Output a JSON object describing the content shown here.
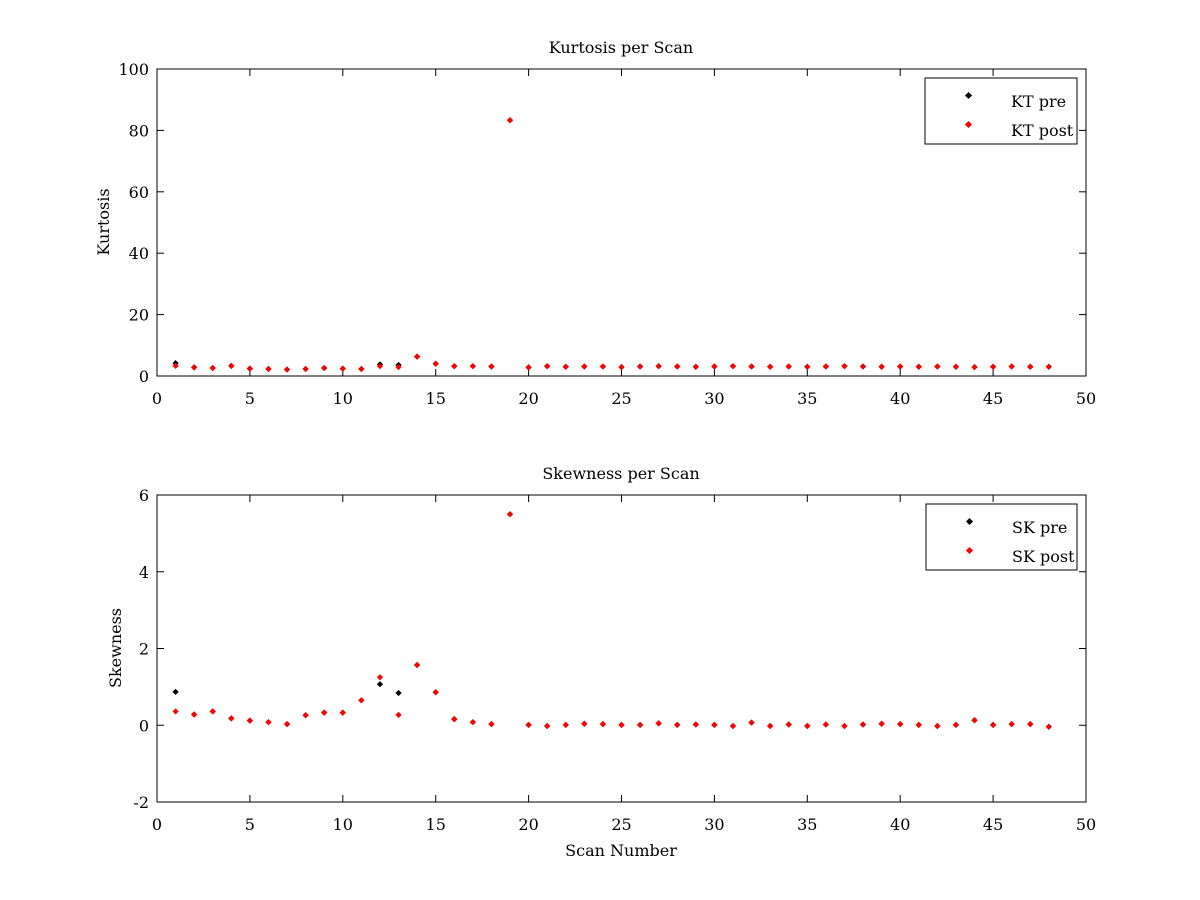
{
  "chart_data": [
    {
      "type": "scatter",
      "title": "Kurtosis per Scan",
      "xlabel": "",
      "ylabel": "Kurtosis",
      "xlim": [
        0,
        50
      ],
      "ylim": [
        0,
        100
      ],
      "xticks": [
        0,
        5,
        10,
        15,
        20,
        25,
        30,
        35,
        40,
        45,
        50
      ],
      "yticks": [
        0,
        20,
        40,
        60,
        80,
        100
      ],
      "grid": false,
      "legend_position": "top-right",
      "x": [
        1,
        2,
        3,
        4,
        5,
        6,
        7,
        8,
        9,
        10,
        11,
        12,
        13,
        14,
        15,
        16,
        17,
        18,
        19,
        20,
        21,
        22,
        23,
        24,
        25,
        26,
        27,
        28,
        29,
        30,
        31,
        32,
        33,
        34,
        35,
        36,
        37,
        38,
        39,
        40,
        41,
        42,
        43,
        44,
        45,
        46,
        47,
        48
      ],
      "series": [
        {
          "name": "KT pre",
          "color": "#000000",
          "values": [
            4.2,
            2.8,
            2.6,
            3.3,
            2.4,
            2.3,
            2.1,
            2.3,
            2.6,
            2.4,
            2.3,
            3.8,
            3.6,
            6.3,
            4.0,
            3.2,
            3.2,
            3.1,
            83.3,
            2.8,
            3.2,
            3.0,
            3.1,
            3.1,
            2.9,
            3.1,
            3.2,
            3.1,
            3.0,
            3.1,
            3.2,
            3.1,
            3.0,
            3.1,
            3.0,
            3.1,
            3.2,
            3.1,
            3.0,
            3.1,
            3.0,
            3.1,
            3.0,
            2.9,
            3.0,
            3.1,
            3.0,
            3.0
          ]
        },
        {
          "name": "KT post",
          "color": "#ff0000",
          "values": [
            3.3,
            2.8,
            2.6,
            3.3,
            2.4,
            2.3,
            2.1,
            2.3,
            2.6,
            2.4,
            2.3,
            3.2,
            2.9,
            6.3,
            4.0,
            3.2,
            3.2,
            3.1,
            83.3,
            2.8,
            3.2,
            3.0,
            3.1,
            3.1,
            2.9,
            3.1,
            3.2,
            3.1,
            3.0,
            3.1,
            3.2,
            3.1,
            3.0,
            3.1,
            3.0,
            3.1,
            3.2,
            3.1,
            3.0,
            3.1,
            3.0,
            3.1,
            3.0,
            2.9,
            3.0,
            3.1,
            3.0,
            3.0
          ]
        }
      ]
    },
    {
      "type": "scatter",
      "title": "Skewness per Scan",
      "xlabel": "Scan Number",
      "ylabel": "Skewness",
      "xlim": [
        0,
        50
      ],
      "ylim": [
        -2,
        6
      ],
      "xticks": [
        0,
        5,
        10,
        15,
        20,
        25,
        30,
        35,
        40,
        45,
        50
      ],
      "yticks": [
        -2,
        0,
        2,
        4,
        6
      ],
      "grid": false,
      "legend_position": "top-right",
      "x": [
        1,
        2,
        3,
        4,
        5,
        6,
        7,
        8,
        9,
        10,
        11,
        12,
        13,
        14,
        15,
        16,
        17,
        18,
        19,
        20,
        21,
        22,
        23,
        24,
        25,
        26,
        27,
        28,
        29,
        30,
        31,
        32,
        33,
        34,
        35,
        36,
        37,
        38,
        39,
        40,
        41,
        42,
        43,
        44,
        45,
        46,
        47,
        48
      ],
      "series": [
        {
          "name": "SK pre",
          "color": "#000000",
          "values": [
            0.87,
            0.28,
            0.36,
            0.18,
            0.12,
            0.08,
            0.03,
            0.26,
            0.33,
            0.33,
            0.65,
            1.07,
            0.84,
            1.57,
            0.86,
            0.16,
            0.08,
            0.03,
            5.5,
            0.01,
            -0.02,
            0.01,
            0.04,
            0.03,
            0.01,
            0.01,
            0.05,
            0.01,
            0.02,
            0.01,
            -0.02,
            0.07,
            -0.02,
            0.02,
            -0.02,
            0.02,
            -0.02,
            0.02,
            0.04,
            0.03,
            0.01,
            -0.02,
            0.01,
            0.13,
            0.01,
            0.03,
            0.03,
            -0.04
          ]
        },
        {
          "name": "SK post",
          "color": "#ff0000",
          "values": [
            0.36,
            0.28,
            0.36,
            0.18,
            0.12,
            0.08,
            0.03,
            0.26,
            0.33,
            0.33,
            0.65,
            1.25,
            0.27,
            1.57,
            0.86,
            0.16,
            0.08,
            0.03,
            5.5,
            0.01,
            -0.02,
            0.01,
            0.04,
            0.03,
            0.01,
            0.01,
            0.05,
            0.01,
            0.02,
            0.01,
            -0.02,
            0.07,
            -0.02,
            0.02,
            -0.02,
            0.02,
            -0.02,
            0.02,
            0.04,
            0.03,
            0.01,
            -0.02,
            0.01,
            0.13,
            0.01,
            0.03,
            0.03,
            -0.04
          ]
        }
      ]
    }
  ]
}
